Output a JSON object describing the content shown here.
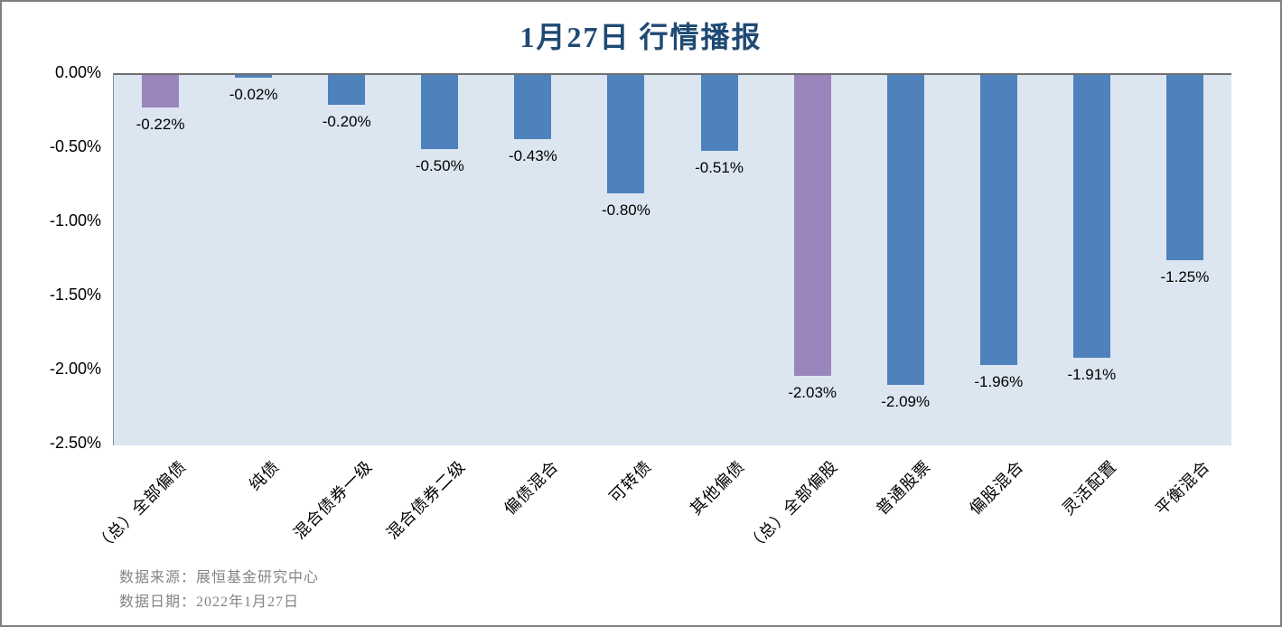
{
  "title": "1月27日  行情播报",
  "chart_data": {
    "type": "bar",
    "title": "1月27日  行情播报",
    "categories": [
      "（总）全部偏债",
      "纯债",
      "混合债券一级",
      "混合债券二级",
      "偏债混合",
      "可转债",
      "其他偏债",
      "（总）全部偏股",
      "普通股票",
      "偏股混合",
      "灵活配置",
      "平衡混合"
    ],
    "values": [
      -0.22,
      -0.02,
      -0.2,
      -0.5,
      -0.43,
      -0.8,
      -0.51,
      -2.03,
      -2.09,
      -1.96,
      -1.91,
      -1.25
    ],
    "value_labels": [
      "-0.22%",
      "-0.02%",
      "-0.20%",
      "-0.50%",
      "-0.43%",
      "-0.80%",
      "-0.51%",
      "-2.03%",
      "-2.09%",
      "-1.96%",
      "-1.91%",
      "-1.25%"
    ],
    "highlight_indices": [
      0,
      7
    ],
    "y_ticks": [
      "0.00%",
      "-0.50%",
      "-1.00%",
      "-1.50%",
      "-2.00%",
      "-2.50%"
    ],
    "ylim": [
      -2.5,
      0
    ],
    "grid": "off",
    "legend": "none",
    "xlabel": "",
    "ylabel": "",
    "colors": {
      "bar_default": "#4f81bd",
      "bar_highlight": "#9a86bc",
      "plot_background": "#dce6f1",
      "title_color": "#1f4a73",
      "axis_line": "#6f6f6f",
      "footer_text": "#848484"
    }
  },
  "footer": {
    "source_line": "数据来源：展恒基金研究中心",
    "date_line": "数据日期：2022年1月27日"
  }
}
